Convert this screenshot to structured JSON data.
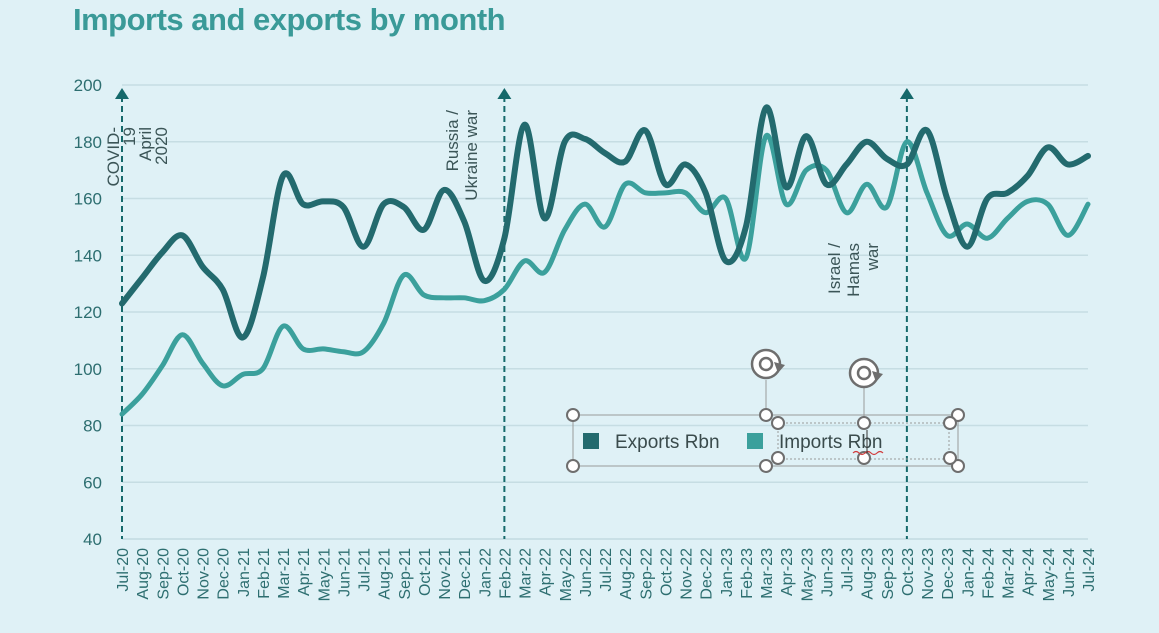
{
  "colors": {
    "background": "#dff1f6",
    "title": "#3a9a98",
    "exports": "#236a6e",
    "imports": "#3ba09c",
    "grid": "#c6dde3",
    "axis_text": "#2d6e70",
    "event_line": "#15696b"
  },
  "chart_data": {
    "type": "line",
    "title": "Imports and exports by month",
    "xlabel": "",
    "ylabel": "",
    "ylim": [
      40,
      200
    ],
    "yticks": [
      40,
      60,
      80,
      100,
      120,
      140,
      160,
      180,
      200
    ],
    "grid": "horizontal",
    "legend_position": "bottom-center",
    "categories": [
      "Jul-20",
      "Aug-20",
      "Sep-20",
      "Oct-20",
      "Nov-20",
      "Dec-20",
      "Jan-21",
      "Feb-21",
      "Mar-21",
      "Apr-21",
      "May-21",
      "Jun-21",
      "Jul-21",
      "Aug-21",
      "Sep-21",
      "Oct-21",
      "Nov-21",
      "Dec-21",
      "Jan-22",
      "Feb-22",
      "Mar-22",
      "Apr-22",
      "May-22",
      "Jun-22",
      "Jul-22",
      "Aug-22",
      "Sep-22",
      "Oct-22",
      "Nov-22",
      "Dec-22",
      "Jan-23",
      "Feb-23",
      "Mar-23",
      "Apr-23",
      "May-23",
      "Jun-23",
      "Jul-23",
      "Aug-23",
      "Sep-23",
      "Oct-23",
      "Nov-23",
      "Dec-23",
      "Jan-24",
      "Feb-24",
      "Mar-24",
      "Apr-24",
      "May-24",
      "Jun-24",
      "Jul-24"
    ],
    "series": [
      {
        "name": "Exports Rbn",
        "color": "#236a6e",
        "values": [
          123,
          132,
          141,
          147,
          136,
          128,
          111,
          132,
          168,
          158,
          159,
          157,
          143,
          158,
          157,
          149,
          163,
          152,
          131,
          146,
          186,
          153,
          180,
          181,
          176,
          173,
          184,
          165,
          172,
          162,
          138,
          150,
          192,
          164,
          182,
          165,
          172,
          180,
          174,
          172,
          184,
          160,
          143,
          160,
          162,
          168,
          178,
          172,
          175
        ]
      },
      {
        "name": "Imports Rbn",
        "color": "#3ba09c",
        "values": [
          84,
          91,
          101,
          112,
          102,
          94,
          98,
          100,
          115,
          107,
          107,
          106,
          106,
          116,
          133,
          126,
          125,
          125,
          124,
          128,
          138,
          134,
          149,
          158,
          150,
          165,
          162,
          162,
          162,
          155,
          160,
          139,
          182,
          158,
          170,
          170,
          155,
          165,
          157,
          180,
          162,
          147,
          151,
          146,
          153,
          159,
          158,
          147,
          158
        ]
      }
    ],
    "annotations": [
      {
        "at": "Jul-20",
        "lines": [
          "COVID-",
          "19",
          "April",
          "2020"
        ]
      },
      {
        "at": "Feb-22",
        "lines": [
          "Russia /",
          "Ukraine war"
        ]
      },
      {
        "at": "Oct-23",
        "lines": [
          "Israel /",
          "Hamas",
          "war"
        ]
      }
    ]
  },
  "legend": {
    "items": [
      {
        "label": "Exports Rbn",
        "color": "#236a6e"
      },
      {
        "label": "Imports Rbn",
        "color": "#3ba09c"
      }
    ]
  }
}
